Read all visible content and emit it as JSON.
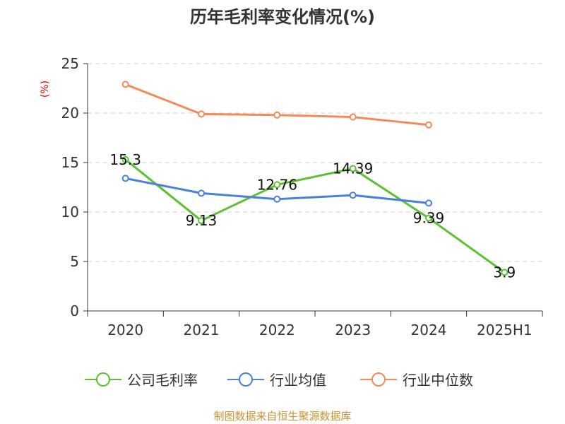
{
  "chart_data": {
    "type": "line",
    "title": "历年毛利率变化情况(%)",
    "ylabel": "(%)",
    "categories": [
      "2020",
      "2021",
      "2022",
      "2023",
      "2024",
      "2025H1"
    ],
    "ylim": [
      0,
      25
    ],
    "yticks": [
      "0",
      "5",
      "10",
      "15",
      "20",
      "25"
    ],
    "grid": true,
    "legend_position": "bottom",
    "series": [
      {
        "name": "公司毛利率",
        "color": "#5cc130",
        "values": [
          15.3,
          9.13,
          12.76,
          14.39,
          9.39,
          3.9
        ],
        "labels": [
          "15.3",
          "9.13",
          "12.76",
          "14.39",
          "9.39",
          "3.9"
        ]
      },
      {
        "name": "行业均值",
        "color": "#4a7fdb",
        "values": [
          13.4,
          11.9,
          11.3,
          11.7,
          10.9,
          null
        ]
      },
      {
        "name": "行业中位数",
        "color": "#f48a5a",
        "values": [
          22.9,
          19.9,
          19.8,
          19.6,
          18.8,
          null
        ]
      }
    ]
  },
  "source": "制图数据来自恒生聚源数据库"
}
